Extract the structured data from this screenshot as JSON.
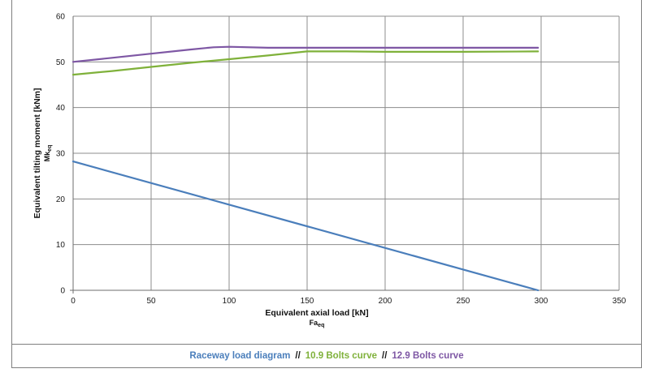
{
  "chart_data": {
    "type": "line",
    "xlabel": "Equivalent axial load [kN]",
    "xlabel_symbol": "Fa",
    "xlabel_symbol_sub": "eq",
    "ylabel": "Equivalent tilting moment [kNm]",
    "ylabel_symbol": "Mk",
    "ylabel_symbol_sub": "eq",
    "xlim": [
      0,
      350
    ],
    "ylim": [
      0,
      60
    ],
    "xticks": [
      0,
      50,
      100,
      150,
      200,
      250,
      300,
      350
    ],
    "yticks": [
      0,
      10,
      20,
      30,
      40,
      50,
      60
    ],
    "grid": true,
    "legend_position": "bottom",
    "legend_separator": "//",
    "series": [
      {
        "name": "Raceway load diagram",
        "color": "#4a7ebb",
        "x": [
          0,
          298
        ],
        "y": [
          28.2,
          0
        ]
      },
      {
        "name": "10.9 Bolts curve",
        "color": "#7fb13a",
        "x": [
          0,
          25,
          50,
          75,
          100,
          125,
          150,
          175,
          200,
          250,
          298
        ],
        "y": [
          47.2,
          48.0,
          48.9,
          49.8,
          50.6,
          51.4,
          52.3,
          52.3,
          52.2,
          52.2,
          52.3
        ]
      },
      {
        "name": "12.9 Bolts curve",
        "color": "#7e57a4",
        "x": [
          0,
          25,
          50,
          75,
          90,
          100,
          125,
          150,
          200,
          250,
          298
        ],
        "y": [
          50.0,
          50.9,
          51.8,
          52.7,
          53.2,
          53.3,
          53.1,
          53.1,
          53.1,
          53.1,
          53.1
        ]
      }
    ]
  }
}
